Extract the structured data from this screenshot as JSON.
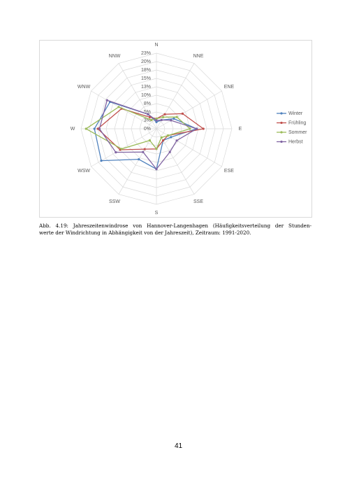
{
  "chart_data": {
    "type": "radar",
    "categories": [
      "N",
      "NNE",
      "ENE",
      "E",
      "ESE",
      "SSE",
      "S",
      "SSW",
      "WSW",
      "W",
      "WNW",
      "NNW"
    ],
    "series": [
      {
        "name": "Winter",
        "color": "#4f81bd",
        "values": [
          2,
          3,
          6,
          12,
          5,
          4,
          12,
          10.5,
          19,
          18.5,
          16,
          5
        ]
      },
      {
        "name": "Frühling",
        "color": "#c0504d",
        "values": [
          3,
          5,
          9,
          14,
          4,
          4,
          6,
          7,
          12.5,
          17.5,
          12,
          4
        ]
      },
      {
        "name": "Sommer",
        "color": "#9bbb59",
        "values": [
          3,
          4,
          7,
          10,
          4,
          3,
          6,
          4,
          12,
          21,
          13,
          3
        ]
      },
      {
        "name": "Herbst",
        "color": "#8064a2",
        "values": [
          2.5,
          3,
          5,
          12,
          7,
          8,
          12,
          8,
          14,
          17,
          17,
          5
        ]
      }
    ],
    "ylim": [
      0,
      22.5
    ],
    "yticks": [
      {
        "value": 0,
        "label": "0%"
      },
      {
        "value": 2.5,
        "label": "3%"
      },
      {
        "value": 5,
        "label": "5%"
      },
      {
        "value": 7.5,
        "label": "8%"
      },
      {
        "value": 10,
        "label": "10%"
      },
      {
        "value": 12.5,
        "label": "13%"
      },
      {
        "value": 15,
        "label": "15%"
      },
      {
        "value": 17.5,
        "label": "18%"
      },
      {
        "value": 20,
        "label": "20%"
      },
      {
        "value": 22.5,
        "label": "23%"
      }
    ],
    "grid": true,
    "legend": "right"
  },
  "caption_lines": [
    "Abb. 4.19: Jahreszeitenwindrose von Hannover-Langenhagen (Häufigkeitsverteilung der Stunden-",
    "werte der Windrichtung in Abhängigkeit von der Jahreszeit), Zeitraum: 1991-2020."
  ],
  "page_number": "41"
}
